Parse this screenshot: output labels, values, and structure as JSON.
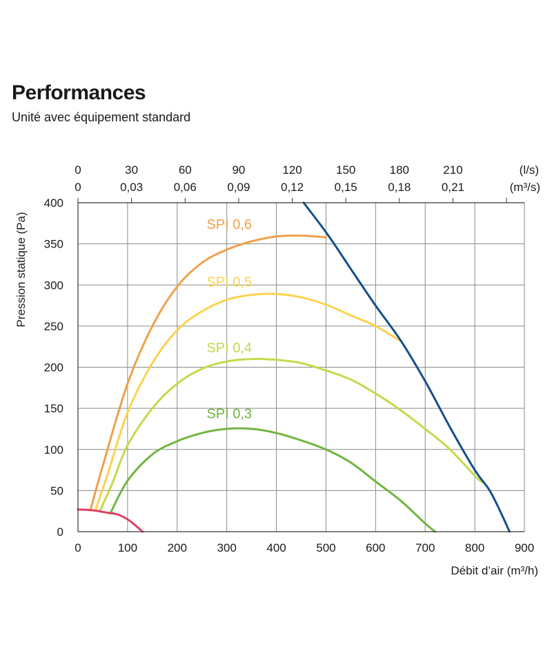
{
  "header": {
    "title": "Performances",
    "subtitle": "Unité avec équipement standard"
  },
  "chart_data": {
    "type": "line",
    "xlabel": "Débit d’air (m³/h)",
    "ylabel": "Pression statique  (Pa)",
    "xlim": [
      0,
      900
    ],
    "ylim": [
      0,
      400
    ],
    "x_ticks": [
      "0",
      "100",
      "200",
      "300",
      "400",
      "500",
      "600",
      "700",
      "800",
      "900"
    ],
    "y_ticks": [
      "0",
      "50",
      "100",
      "150",
      "200",
      "250",
      "300",
      "350",
      "400"
    ],
    "top_axis": {
      "unit_ls": "(l/s)",
      "unit_m3s": "(m³/s)",
      "ticks": [
        {
          "x": 0,
          "ls": "0",
          "m3s": "0"
        },
        {
          "x": 108,
          "ls": "30",
          "m3s": "0,03"
        },
        {
          "x": 216,
          "ls": "60",
          "m3s": "0,06"
        },
        {
          "x": 324,
          "ls": "90",
          "m3s": "0,09"
        },
        {
          "x": 432,
          "ls": "120",
          "m3s": "0,12"
        },
        {
          "x": 540,
          "ls": "150",
          "m3s": "0,15"
        },
        {
          "x": 648,
          "ls": "180",
          "m3s": "0,18"
        },
        {
          "x": 756,
          "ls": "210",
          "m3s": "0,21"
        }
      ]
    },
    "grid": true,
    "series": [
      {
        "name": "SPI 0,6",
        "color": "#f0a04a",
        "label_at": [
          305,
          368
        ],
        "points": [
          [
            25,
            26
          ],
          [
            50,
            80
          ],
          [
            100,
            180
          ],
          [
            150,
            250
          ],
          [
            200,
            298
          ],
          [
            250,
            327
          ],
          [
            300,
            343
          ],
          [
            350,
            353
          ],
          [
            400,
            359
          ],
          [
            450,
            360
          ],
          [
            500,
            358
          ]
        ]
      },
      {
        "name": "SPI 0,5",
        "color": "#fcd24f",
        "label_at": [
          305,
          298
        ],
        "points": [
          [
            35,
            26
          ],
          [
            60,
            70
          ],
          [
            100,
            145
          ],
          [
            150,
            205
          ],
          [
            200,
            245
          ],
          [
            250,
            268
          ],
          [
            300,
            282
          ],
          [
            350,
            288
          ],
          [
            400,
            289
          ],
          [
            450,
            285
          ],
          [
            500,
            276
          ],
          [
            550,
            263
          ],
          [
            600,
            250
          ],
          [
            650,
            232
          ]
        ]
      },
      {
        "name": "SPI 0,4",
        "color": "#c4d94b",
        "label_at": [
          305,
          218
        ],
        "points": [
          [
            45,
            26
          ],
          [
            70,
            60
          ],
          [
            100,
            105
          ],
          [
            150,
            150
          ],
          [
            200,
            180
          ],
          [
            250,
            198
          ],
          [
            300,
            207
          ],
          [
            350,
            210
          ],
          [
            400,
            209
          ],
          [
            450,
            205
          ],
          [
            500,
            196
          ],
          [
            550,
            185
          ],
          [
            600,
            168
          ],
          [
            650,
            148
          ],
          [
            700,
            125
          ],
          [
            750,
            100
          ],
          [
            800,
            68
          ],
          [
            815,
            60
          ]
        ]
      },
      {
        "name": "SPI 0,3",
        "color": "#70b541",
        "label_at": [
          305,
          138
        ],
        "points": [
          [
            65,
            22
          ],
          [
            100,
            62
          ],
          [
            150,
            94
          ],
          [
            200,
            110
          ],
          [
            250,
            120
          ],
          [
            300,
            125
          ],
          [
            350,
            125
          ],
          [
            400,
            120
          ],
          [
            450,
            111
          ],
          [
            500,
            100
          ],
          [
            550,
            84
          ],
          [
            600,
            61
          ],
          [
            650,
            38
          ],
          [
            700,
            10
          ],
          [
            720,
            0
          ]
        ]
      },
      {
        "name": "",
        "color": "#154d8d",
        "label_at": null,
        "points": [
          [
            455,
            400
          ],
          [
            505,
            360
          ],
          [
            555,
            315
          ],
          [
            600,
            275
          ],
          [
            650,
            233
          ],
          [
            700,
            183
          ],
          [
            750,
            127
          ],
          [
            800,
            75
          ],
          [
            830,
            50
          ],
          [
            855,
            20
          ],
          [
            870,
            0
          ]
        ]
      },
      {
        "name": "",
        "color": "#e13e62",
        "label_at": null,
        "points": [
          [
            0,
            27
          ],
          [
            30,
            26
          ],
          [
            60,
            23
          ],
          [
            80,
            21
          ],
          [
            100,
            15
          ],
          [
            115,
            8
          ],
          [
            130,
            0
          ]
        ]
      }
    ]
  }
}
